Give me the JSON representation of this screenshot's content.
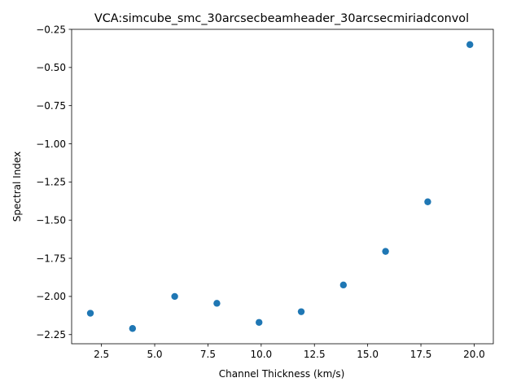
{
  "chart_data": {
    "type": "scatter",
    "title": "VCA:simcube_smc_30arcsecbeamheader_30arcsecmiriadconvol",
    "xlabel": "Channel Thickness (km/s)",
    "ylabel": "Spectral Index",
    "xlim": [
      1.1,
      20.9
    ],
    "ylim": [
      -2.31,
      -0.25
    ],
    "xticks": [
      2.5,
      5.0,
      7.5,
      10.0,
      12.5,
      15.0,
      17.5,
      20.0
    ],
    "xtick_labels": [
      "2.5",
      "5.0",
      "7.5",
      "10.0",
      "12.5",
      "15.0",
      "17.5",
      "20.0"
    ],
    "yticks": [
      -2.25,
      -2.0,
      -1.75,
      -1.5,
      -1.25,
      -1.0,
      -0.75,
      -0.5,
      -0.25
    ],
    "ytick_labels": [
      "−2.25",
      "−2.00",
      "−1.75",
      "−1.50",
      "−1.25",
      "−1.00",
      "−0.75",
      "−0.50",
      "−0.25"
    ],
    "grid": false,
    "marker_color": "#1f77b4",
    "x": [
      1.98,
      3.96,
      5.94,
      7.92,
      9.9,
      11.88,
      13.86,
      15.84,
      17.82,
      19.8
    ],
    "y": [
      -2.11,
      -2.21,
      -2.0,
      -2.045,
      -2.17,
      -2.1,
      -1.925,
      -1.705,
      -1.38,
      -0.35
    ]
  }
}
